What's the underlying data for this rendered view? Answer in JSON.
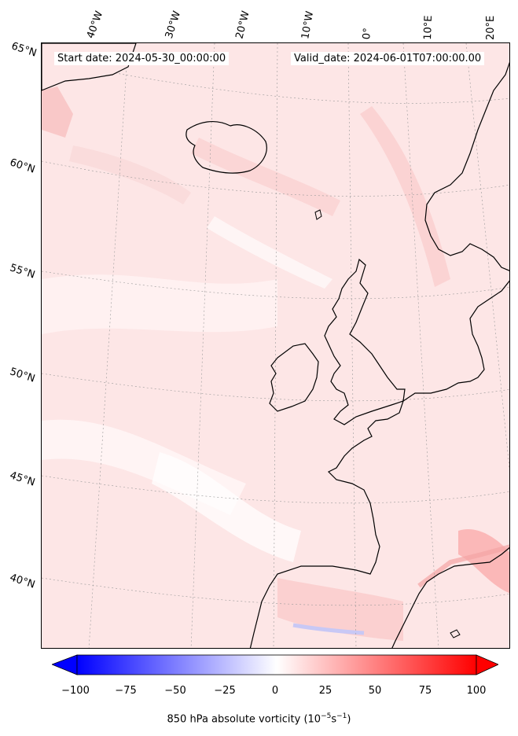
{
  "header": {
    "start_date": "Start date: 2024-05-30_00:00:00",
    "valid_date": "Valid_date: 2024-06-01T07:00:00.00"
  },
  "longitude_labels": [
    "40°W",
    "30°W",
    "20°W",
    "10°W",
    "0°",
    "10°E",
    "20°E"
  ],
  "latitude_labels": [
    "65°N",
    "60°N",
    "55°N",
    "50°N",
    "45°N",
    "40°N"
  ],
  "colorbar": {
    "ticks": [
      "−100",
      "−75",
      "−50",
      "−25",
      "0",
      "25",
      "50",
      "75",
      "100"
    ],
    "label": "850 hPa absolute vorticity (10",
    "label_exp1": "−5",
    "label_mid": "s",
    "label_exp2": "−1",
    "label_end": ")",
    "colors": {
      "negative": "#0000ff",
      "neutral": "#ffffff",
      "positive": "#ff0000"
    }
  }
}
